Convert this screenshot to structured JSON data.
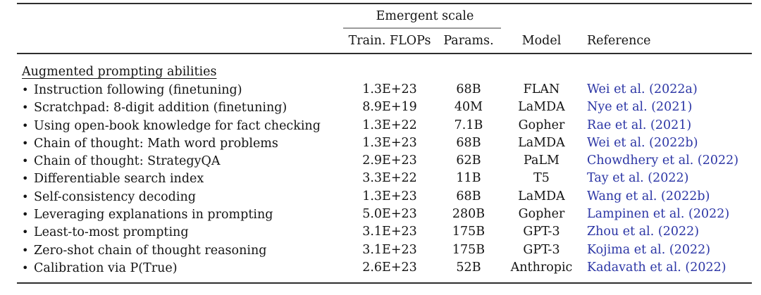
{
  "table": {
    "header": {
      "group_label": "Emergent scale",
      "columns": {
        "flops": "Train. FLOPs",
        "params": "Params.",
        "model": "Model",
        "reference": "Reference"
      }
    },
    "section_label": "Augmented prompting abilities",
    "bullet_glyph": "•",
    "rows": [
      {
        "ability": "Instruction following (finetuning)",
        "flops": "1.3E+23",
        "params": "68B",
        "model": "FLAN",
        "reference": "Wei et al. (2022a)"
      },
      {
        "ability": "Scratchpad: 8-digit addition (finetuning)",
        "flops": "8.9E+19",
        "params": "40M",
        "model": "LaMDA",
        "reference": "Nye et al. (2021)"
      },
      {
        "ability": "Using open-book knowledge for fact checking",
        "flops": "1.3E+22",
        "params": "7.1B",
        "model": "Gopher",
        "reference": "Rae et al. (2021)"
      },
      {
        "ability": "Chain of thought: Math word problems",
        "flops": "1.3E+23",
        "params": "68B",
        "model": "LaMDA",
        "reference": "Wei et al. (2022b)"
      },
      {
        "ability": "Chain of thought: StrategyQA",
        "flops": "2.9E+23",
        "params": "62B",
        "model": "PaLM",
        "reference": "Chowdhery et al. (2022)"
      },
      {
        "ability": "Differentiable search index",
        "flops": "3.3E+22",
        "params": "11B",
        "model": "T5",
        "reference": "Tay et al. (2022)"
      },
      {
        "ability": "Self-consistency decoding",
        "flops": "1.3E+23",
        "params": "68B",
        "model": "LaMDA",
        "reference": "Wang et al. (2022b)"
      },
      {
        "ability": "Leveraging explanations in prompting",
        "flops": "5.0E+23",
        "params": "280B",
        "model": "Gopher",
        "reference": "Lampinen et al. (2022)"
      },
      {
        "ability": "Least-to-most prompting",
        "flops": "3.1E+23",
        "params": "175B",
        "model": "GPT-3",
        "reference": "Zhou et al. (2022)"
      },
      {
        "ability": "Zero-shot chain of thought reasoning",
        "flops": "3.1E+23",
        "params": "175B",
        "model": "GPT-3",
        "reference": "Kojima et al. (2022)"
      },
      {
        "ability": "Calibration via P(True)",
        "flops": "2.6E+23",
        "params": "52B",
        "model": "Anthropic",
        "reference": "Kadavath et al. (2022)"
      }
    ],
    "colors": {
      "citation_blue": "#2b35a5",
      "text": "#141414",
      "heavy_rule": "#2e2e2e",
      "light_rule": "#9b9b9b",
      "background": "#ffffff"
    }
  }
}
